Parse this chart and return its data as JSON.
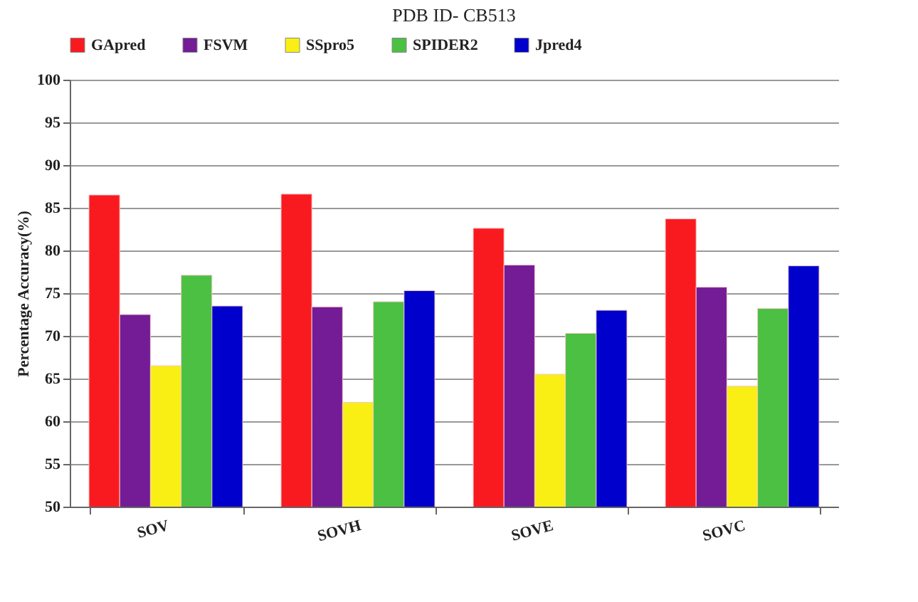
{
  "chart_data": {
    "type": "bar",
    "title": "PDB ID- CB513",
    "ylabel": "Percentage Accuracy(%)",
    "categories": [
      "SOV",
      "SOVH",
      "SOVE",
      "SOVC"
    ],
    "series": [
      {
        "name": "GApred",
        "color": "#f91a20",
        "values": [
          86.5,
          86.6,
          82.6,
          83.7
        ]
      },
      {
        "name": "FSVM",
        "color": "#741b96",
        "values": [
          72.5,
          73.4,
          78.3,
          75.7
        ]
      },
      {
        "name": "SSpro5",
        "color": "#f9ef14",
        "values": [
          66.5,
          62.2,
          65.5,
          64.1
        ]
      },
      {
        "name": "SPIDER2",
        "color": "#4bc043",
        "values": [
          77.1,
          74.0,
          70.3,
          73.2
        ]
      },
      {
        "name": "Jpred4",
        "color": "#0000cc",
        "values": [
          73.5,
          75.3,
          73.0,
          78.2
        ]
      }
    ],
    "ylim": [
      50,
      100
    ],
    "yticks": [
      50,
      55,
      60,
      65,
      70,
      75,
      80,
      85,
      90,
      95,
      100
    ],
    "grid": "y",
    "legend": "top left"
  }
}
